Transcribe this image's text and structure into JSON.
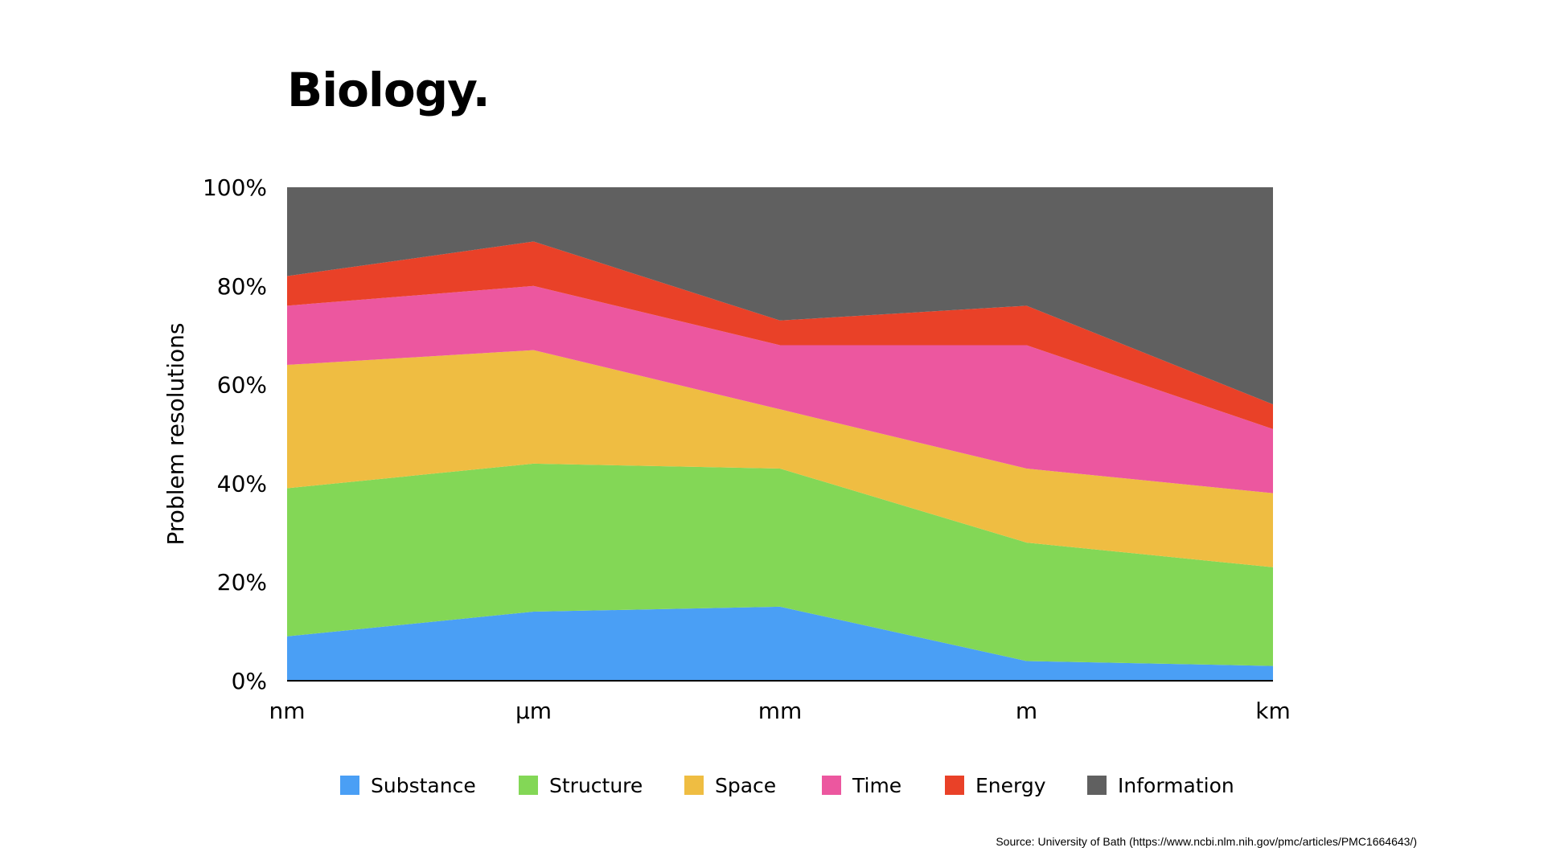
{
  "title": "Biology.",
  "source": "Source: University of Bath (https://www.ncbi.nlm.nih.gov/pmc/articles/PMC1664643/)",
  "chart_data": {
    "type": "area",
    "stacked": true,
    "title": "Biology.",
    "xlabel": "",
    "ylabel": "Problem resolutions",
    "categories": [
      "nm",
      "μm",
      "mm",
      "m",
      "km"
    ],
    "ylim": [
      0,
      100
    ],
    "yticks": [
      "0%",
      "20%",
      "40%",
      "60%",
      "80%",
      "100%"
    ],
    "ytick_values": [
      0,
      20,
      40,
      60,
      80,
      100
    ],
    "legend_position": "bottom",
    "series": [
      {
        "name": "Substance",
        "color": "#4a9ff5",
        "values": [
          9,
          14,
          15,
          4,
          3
        ]
      },
      {
        "name": "Structure",
        "color": "#83d756",
        "values": [
          30,
          30,
          28,
          24,
          20
        ]
      },
      {
        "name": "Space",
        "color": "#efbd42",
        "values": [
          25,
          23,
          12,
          15,
          15
        ]
      },
      {
        "name": "Time",
        "color": "#ec579f",
        "values": [
          12,
          13,
          13,
          25,
          13
        ]
      },
      {
        "name": "Energy",
        "color": "#e94128",
        "values": [
          6,
          9,
          5,
          8,
          5
        ]
      },
      {
        "name": "Information",
        "color": "#606060",
        "values": [
          18,
          11,
          27,
          24,
          44
        ]
      }
    ]
  }
}
